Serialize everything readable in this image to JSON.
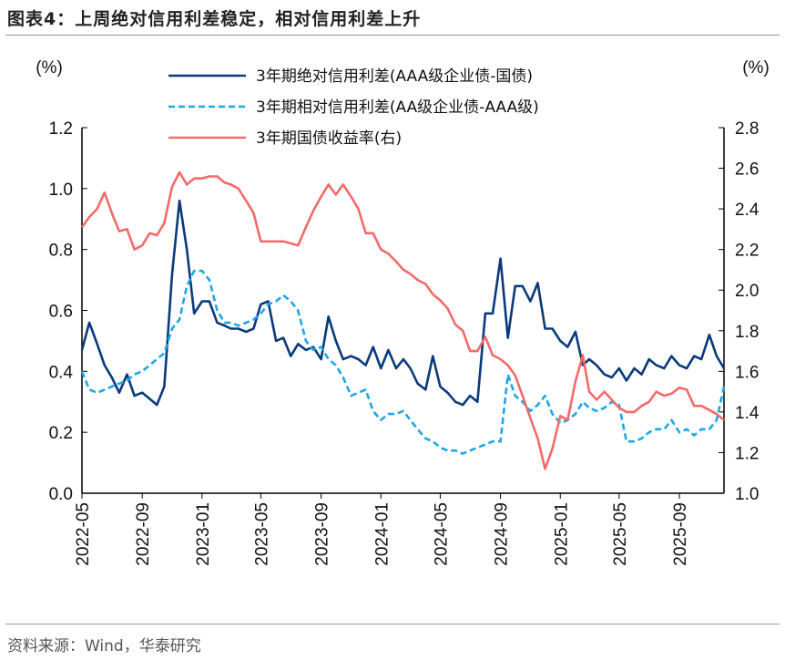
{
  "title": "图表4：上周绝对信用利差稳定，相对信用利差上升",
  "source": "资料来源：Wind，华泰研究",
  "chart_data": {
    "type": "line",
    "title": "图表4：上周绝对信用利差稳定，相对信用利差上升",
    "ylabel_left": "(%)",
    "ylabel_right": "(%)",
    "ylim_left": [
      0.0,
      1.2
    ],
    "ylim_right": [
      1.0,
      2.8
    ],
    "yticks_left": [
      "0.0",
      "0.2",
      "0.4",
      "0.6",
      "0.8",
      "1.0",
      "1.2"
    ],
    "yticks_right": [
      "1.0",
      "1.2",
      "1.4",
      "1.6",
      "1.8",
      "2.0",
      "2.2",
      "2.4",
      "2.6",
      "2.8"
    ],
    "xticks": [
      "2022-05",
      "2022-09",
      "2023-01",
      "2023-05",
      "2023-09",
      "2024-01",
      "2024-05",
      "2024-09",
      "2025-01",
      "2025-05",
      "2025-09"
    ],
    "grid": false,
    "legend_position": "top",
    "x": [
      "2022-05-01",
      "2022-05-16",
      "2022-06-01",
      "2022-06-16",
      "2022-07-01",
      "2022-07-16",
      "2022-08-01",
      "2022-08-16",
      "2022-09-01",
      "2022-09-16",
      "2022-10-01",
      "2022-10-16",
      "2022-11-01",
      "2022-11-16",
      "2022-12-01",
      "2022-12-16",
      "2023-01-01",
      "2023-01-16",
      "2023-02-01",
      "2023-02-16",
      "2023-03-01",
      "2023-03-16",
      "2023-04-01",
      "2023-04-16",
      "2023-05-01",
      "2023-05-16",
      "2023-06-01",
      "2023-06-16",
      "2023-07-01",
      "2023-07-16",
      "2023-08-01",
      "2023-08-16",
      "2023-09-01",
      "2023-09-16",
      "2023-10-01",
      "2023-10-16",
      "2023-11-01",
      "2023-11-16",
      "2023-12-01",
      "2023-12-16",
      "2024-01-01",
      "2024-01-16",
      "2024-02-01",
      "2024-02-16",
      "2024-03-01",
      "2024-03-16",
      "2024-04-01",
      "2024-04-16",
      "2024-05-01",
      "2024-05-16",
      "2024-06-01",
      "2024-06-16",
      "2024-07-01",
      "2024-07-16",
      "2024-08-01",
      "2024-08-16",
      "2024-09-01",
      "2024-09-16",
      "2024-10-01",
      "2024-10-16",
      "2024-11-01",
      "2024-11-16",
      "2024-12-01",
      "2024-12-16",
      "2025-01-01",
      "2025-01-16",
      "2025-02-01",
      "2025-02-16",
      "2025-03-01",
      "2025-03-16",
      "2025-04-01",
      "2025-04-16",
      "2025-05-01",
      "2025-05-16",
      "2025-06-01",
      "2025-06-16",
      "2025-07-01",
      "2025-07-16",
      "2025-08-01",
      "2025-08-16",
      "2025-09-01",
      "2025-09-16",
      "2025-10-01",
      "2025-10-16",
      "2025-11-01",
      "2025-11-16",
      "2025-12-01"
    ],
    "series": [
      {
        "name": "3年期绝对信用利差(AAA级企业债-国债)",
        "axis": "left",
        "color": "#0a3a7c",
        "style": "solid",
        "values": [
          0.47,
          0.56,
          0.49,
          0.42,
          0.38,
          0.33,
          0.39,
          0.32,
          0.33,
          0.31,
          0.29,
          0.35,
          0.72,
          0.96,
          0.8,
          0.59,
          0.63,
          0.63,
          0.56,
          0.55,
          0.54,
          0.54,
          0.53,
          0.54,
          0.62,
          0.63,
          0.5,
          0.51,
          0.45,
          0.49,
          0.47,
          0.48,
          0.44,
          0.58,
          0.5,
          0.44,
          0.45,
          0.44,
          0.42,
          0.48,
          0.41,
          0.47,
          0.41,
          0.44,
          0.41,
          0.36,
          0.34,
          0.45,
          0.35,
          0.33,
          0.3,
          0.29,
          0.32,
          0.3,
          0.59,
          0.59,
          0.77,
          0.51,
          0.68,
          0.68,
          0.63,
          0.69,
          0.54,
          0.54,
          0.5,
          0.48,
          0.53,
          0.42,
          0.44,
          0.42,
          0.39,
          0.38,
          0.41,
          0.37,
          0.41,
          0.39,
          0.44,
          0.42,
          0.41,
          0.45,
          0.42,
          0.41,
          0.45,
          0.44,
          0.52,
          0.45,
          0.41
        ]
      },
      {
        "name": "3年期相对信用利差(AA级企业债-AAA级)",
        "axis": "left",
        "color": "#1ea7e8",
        "style": "dashed",
        "values": [
          0.4,
          0.34,
          0.33,
          0.34,
          0.35,
          0.36,
          0.37,
          0.39,
          0.4,
          0.42,
          0.44,
          0.46,
          0.54,
          0.57,
          0.68,
          0.73,
          0.73,
          0.7,
          0.6,
          0.56,
          0.56,
          0.55,
          0.56,
          0.57,
          0.59,
          0.62,
          0.63,
          0.65,
          0.63,
          0.6,
          0.5,
          0.47,
          0.48,
          0.44,
          0.42,
          0.38,
          0.32,
          0.33,
          0.34,
          0.27,
          0.24,
          0.26,
          0.26,
          0.27,
          0.24,
          0.21,
          0.18,
          0.17,
          0.15,
          0.14,
          0.14,
          0.13,
          0.14,
          0.15,
          0.16,
          0.17,
          0.17,
          0.39,
          0.32,
          0.3,
          0.27,
          0.29,
          0.32,
          0.26,
          0.23,
          0.24,
          0.26,
          0.3,
          0.28,
          0.27,
          0.28,
          0.3,
          0.29,
          0.17,
          0.17,
          0.18,
          0.2,
          0.21,
          0.21,
          0.24,
          0.2,
          0.21,
          0.19,
          0.21,
          0.21,
          0.24,
          0.35
        ]
      },
      {
        "name": "3年期国债收益率(右)",
        "axis": "right",
        "color": "#f26b6b",
        "style": "solid",
        "values": [
          2.31,
          2.36,
          2.4,
          2.48,
          2.38,
          2.29,
          2.3,
          2.2,
          2.22,
          2.28,
          2.27,
          2.33,
          2.51,
          2.58,
          2.52,
          2.55,
          2.55,
          2.56,
          2.56,
          2.53,
          2.52,
          2.5,
          2.44,
          2.38,
          2.24,
          2.24,
          2.24,
          2.24,
          2.23,
          2.22,
          2.31,
          2.39,
          2.46,
          2.52,
          2.47,
          2.52,
          2.46,
          2.4,
          2.28,
          2.28,
          2.2,
          2.18,
          2.14,
          2.1,
          2.08,
          2.05,
          2.03,
          1.98,
          1.95,
          1.91,
          1.83,
          1.8,
          1.7,
          1.7,
          1.77,
          1.68,
          1.66,
          1.63,
          1.58,
          1.48,
          1.37,
          1.27,
          1.12,
          1.22,
          1.38,
          1.36,
          1.55,
          1.68,
          1.5,
          1.46,
          1.5,
          1.46,
          1.42,
          1.4,
          1.4,
          1.43,
          1.45,
          1.5,
          1.48,
          1.49,
          1.52,
          1.51,
          1.43,
          1.43,
          1.41,
          1.39,
          1.36
        ]
      }
    ]
  }
}
